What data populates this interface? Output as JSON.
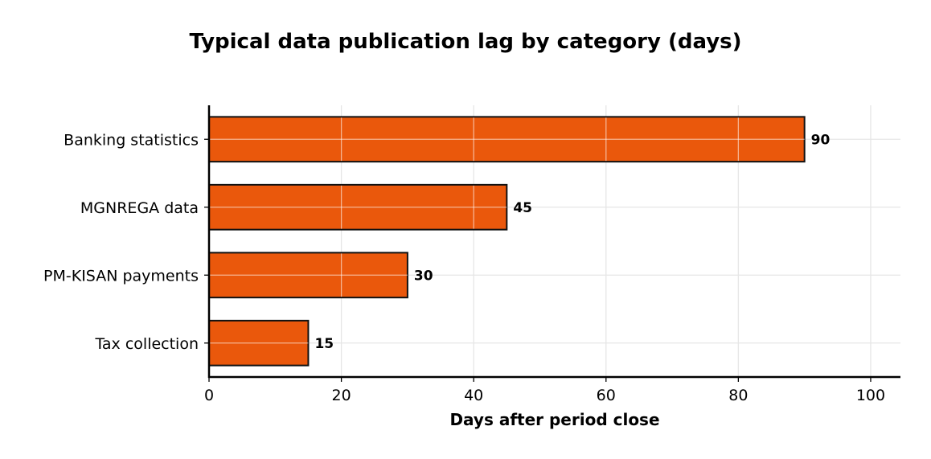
{
  "chart_data": {
    "type": "bar",
    "orientation": "horizontal",
    "title": "Typical data publication lag by category (days)",
    "xlabel": "Days after period close",
    "ylabel": "",
    "categories": [
      "Banking statistics",
      "MGNREGA data",
      "PM-KISAN payments",
      "Tax collection"
    ],
    "values": [
      90,
      45,
      30,
      15
    ],
    "value_labels": [
      "90",
      "45",
      "30",
      "15"
    ],
    "xlim": [
      0,
      104.5
    ],
    "xticks": [
      0,
      20,
      40,
      60,
      80,
      100
    ],
    "xtick_labels": [
      "0",
      "20",
      "40",
      "60",
      "80",
      "100"
    ],
    "grid": true,
    "legend": "none",
    "colors": {
      "bar_fill": "#EA580C",
      "bar_edge": "#111111",
      "grid": "#E6E6E6",
      "axis": "#000000"
    }
  }
}
